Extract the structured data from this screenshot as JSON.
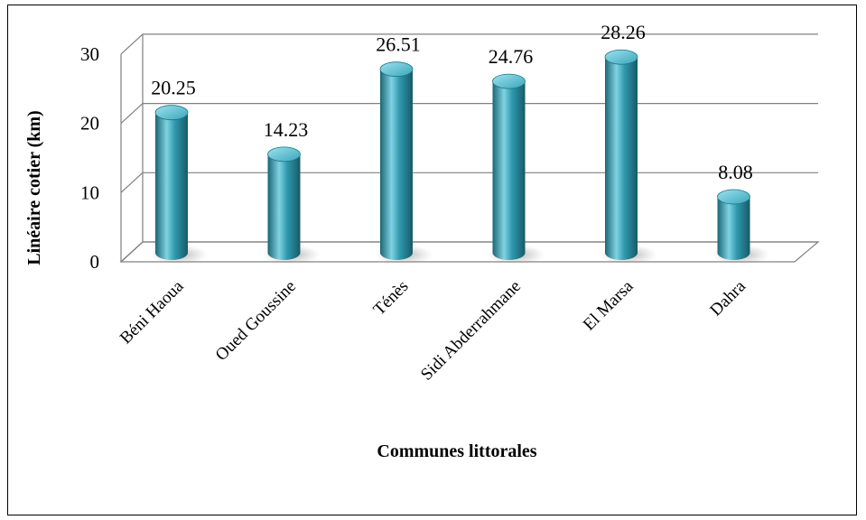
{
  "chart_data": {
    "type": "bar",
    "categories": [
      "Béni Haoua",
      "Oued Goussine",
      "Ténès",
      "Sidi Abderrahmane",
      "El Marsa",
      "Dahra"
    ],
    "values": [
      20.25,
      14.23,
      26.51,
      24.76,
      28.26,
      8.08
    ],
    "value_labels": [
      "20.25",
      "14.23",
      "26.51",
      "24.76",
      "28.26",
      "8.08"
    ],
    "title": "",
    "xlabel": "Communes littorales",
    "ylabel": "Linéaire cotier (km)",
    "ylim": [
      0,
      30
    ],
    "yticks": [
      "0",
      "10",
      "20",
      "30"
    ],
    "grid": true,
    "legend": "none",
    "bar_shape": "3d-cylinder",
    "bar_color": "#2f98ac",
    "bar_color_light": "#7fd3e2",
    "bar_color_dark": "#1b6676"
  }
}
